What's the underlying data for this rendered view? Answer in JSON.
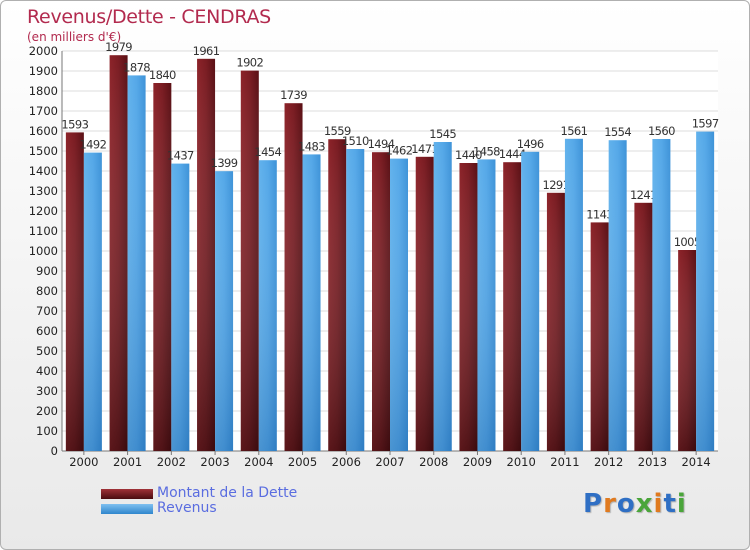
{
  "title": "Revenus/Dette - CENDRAS",
  "subtitle": "(en milliers d'€)",
  "logo": "Proxiti",
  "colors": {
    "dette": "#6e1a1f",
    "revenus": "#4ca3e6",
    "title": "#b22a4e",
    "legend_text": "#5a6de0"
  },
  "chart_data": {
    "type": "bar",
    "title": "Revenus/Dette - CENDRAS",
    "subtitle": "(en milliers d'€)",
    "categories": [
      "2000",
      "2001",
      "2002",
      "2003",
      "2004",
      "2005",
      "2006",
      "2007",
      "2008",
      "2009",
      "2010",
      "2011",
      "2012",
      "2013",
      "2014"
    ],
    "series": [
      {
        "name": "Montant de la Dette",
        "values": [
          1593,
          1979,
          1840,
          1961,
          1902,
          1739,
          1559,
          1494,
          1471,
          1440,
          1444,
          1291,
          1143,
          1241,
          1005
        ]
      },
      {
        "name": "Revenus",
        "values": [
          1492,
          1878,
          1437,
          1399,
          1454,
          1483,
          1510,
          1462,
          1545,
          1458,
          1496,
          1561,
          1554,
          1560,
          1597
        ]
      }
    ],
    "ylim": [
      0,
      2000
    ],
    "ytick_step": 100,
    "grid": true,
    "legend": "bottom-left"
  },
  "legend": {
    "items": [
      "Montant de la Dette",
      "Revenus"
    ]
  }
}
